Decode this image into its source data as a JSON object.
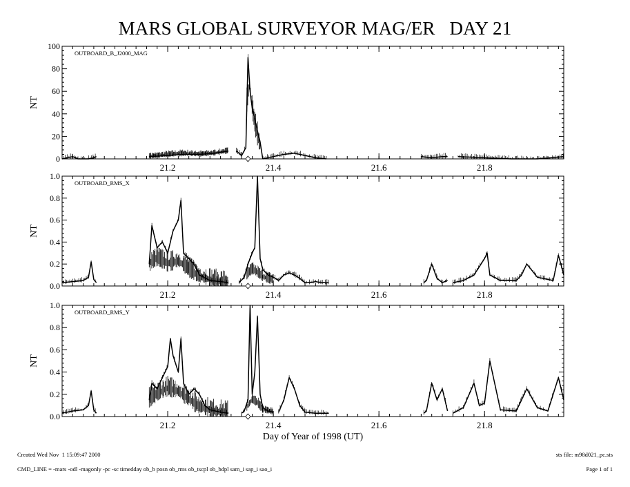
{
  "title": "MARS GLOBAL SURVEYOR MAG/ER   DAY 21",
  "footer": {
    "created": "Created Wed Nov  1 15:09:47 2000",
    "sts_file": "sts file: m98d021_pc.sts",
    "cmd_line": "CMD_LINE = -mars -odl -magonly -pc -sc timedday ob_b posn ob_rms ob_tscpl ob_bdpl sam_i sap_i sao_i",
    "page": "Page 1 of 1"
  },
  "chart_data": [
    {
      "type": "line",
      "label": "OUTBOARD_B_J2000_MAG",
      "ylabel": "NT",
      "xlim": [
        21.0,
        21.95
      ],
      "ylim": [
        0,
        100
      ],
      "yticks": [
        0,
        20,
        40,
        60,
        80,
        100
      ],
      "ytick_labels": [
        "0",
        "20",
        "40",
        "60",
        "80",
        "100"
      ],
      "xticks": [
        21.2,
        21.4,
        21.6,
        21.8
      ],
      "xtick_labels": [
        "21.2",
        "21.4",
        "21.6",
        "21.8"
      ],
      "marker_x": 21.352,
      "segments": [
        {
          "x": [
            21.0,
            21.01,
            21.02,
            21.03,
            21.04,
            21.05,
            21.06,
            21.065
          ],
          "y": [
            0,
            1,
            2,
            0,
            -1,
            0,
            1,
            2
          ]
        },
        {
          "x": [
            21.165,
            21.2,
            21.23,
            21.26,
            21.29,
            21.315
          ],
          "y": [
            2,
            3,
            4,
            4,
            5,
            7
          ]
        },
        {
          "x": [
            21.33,
            21.34,
            21.348,
            21.352,
            21.356,
            21.36,
            21.365,
            21.37,
            21.375,
            21.38
          ],
          "y": [
            7,
            3,
            10,
            90,
            60,
            45,
            35,
            25,
            15,
            0
          ]
        },
        {
          "x": [
            21.38,
            21.4,
            21.42,
            21.44,
            21.46,
            21.48,
            21.5
          ],
          "y": [
            0,
            2,
            4,
            5,
            3,
            1,
            0
          ]
        },
        {
          "x": [
            21.68,
            21.7,
            21.72,
            21.73
          ],
          "y": [
            2,
            1,
            2,
            2
          ]
        },
        {
          "x": [
            21.75,
            21.8,
            21.85,
            21.9,
            21.95
          ],
          "y": [
            2,
            1,
            0,
            -1,
            2
          ]
        }
      ],
      "envelopes": [
        {
          "x": [
            21.165,
            21.2,
            21.23,
            21.26,
            21.29,
            21.315
          ],
          "y": [
            2,
            4,
            5,
            4,
            5,
            7
          ],
          "amplitude": 3
        },
        {
          "x": [
            21.35,
            21.355,
            21.36,
            21.365,
            21.37,
            21.375
          ],
          "y": [
            50,
            65,
            45,
            30,
            20,
            10
          ],
          "amplitude": 12
        }
      ]
    },
    {
      "type": "line",
      "label": "OUTBOARD_RMS_X",
      "ylabel": "NT",
      "xlim": [
        21.0,
        21.95
      ],
      "ylim": [
        0,
        1.0
      ],
      "yticks": [
        0.0,
        0.2,
        0.4,
        0.6,
        0.8,
        1.0
      ],
      "ytick_labels": [
        "0.0",
        "0.2",
        "0.4",
        "0.6",
        "0.8",
        "1.0"
      ],
      "xticks": [
        21.2,
        21.4,
        21.6,
        21.8
      ],
      "xtick_labels": [
        "21.2",
        "21.4",
        "21.6",
        "21.8"
      ],
      "marker_x": 21.352,
      "segments": [
        {
          "x": [
            21.0,
            21.02,
            21.04,
            21.05,
            21.055,
            21.06,
            21.065
          ],
          "y": [
            0.03,
            0.04,
            0.05,
            0.08,
            0.22,
            0.06,
            0.03
          ]
        },
        {
          "x": [
            21.165,
            21.17,
            21.18,
            21.19,
            21.2,
            21.21,
            21.22,
            21.225,
            21.23,
            21.24,
            21.25,
            21.26,
            21.28,
            21.3,
            21.315
          ],
          "y": [
            0.2,
            0.55,
            0.35,
            0.4,
            0.3,
            0.5,
            0.6,
            0.78,
            0.3,
            0.25,
            0.2,
            0.1,
            0.05,
            0.04,
            0.03
          ]
        },
        {
          "x": [
            21.335,
            21.345,
            21.352,
            21.356,
            21.36,
            21.365,
            21.37,
            21.375,
            21.38,
            21.39,
            21.4,
            21.41
          ],
          "y": [
            0.03,
            0.08,
            0.2,
            0.25,
            0.3,
            0.35,
            1.0,
            0.25,
            0.15,
            0.1,
            0.08,
            0.05
          ]
        },
        {
          "x": [
            21.41,
            21.42,
            21.43,
            21.44,
            21.45,
            21.46,
            21.47,
            21.48,
            21.49,
            21.505
          ],
          "y": [
            0.05,
            0.1,
            0.12,
            0.1,
            0.07,
            0.03,
            0.03,
            0.04,
            0.03,
            0.03
          ]
        },
        {
          "x": [
            21.685,
            21.69,
            21.7,
            21.71,
            21.72,
            21.73
          ],
          "y": [
            0.03,
            0.05,
            0.2,
            0.07,
            0.03,
            0.05
          ]
        },
        {
          "x": [
            21.74,
            21.76,
            21.78,
            21.8,
            21.805,
            21.81,
            21.83,
            21.86,
            21.87,
            21.88,
            21.9,
            21.93,
            21.94,
            21.95
          ],
          "y": [
            0.03,
            0.05,
            0.1,
            0.25,
            0.3,
            0.1,
            0.05,
            0.05,
            0.1,
            0.2,
            0.08,
            0.05,
            0.28,
            0.1
          ]
        }
      ],
      "envelopes": [
        {
          "x": [
            21.165,
            21.18,
            21.2,
            21.22,
            21.24,
            21.26,
            21.29,
            21.315
          ],
          "y": [
            0.2,
            0.25,
            0.2,
            0.22,
            0.15,
            0.08,
            0.04,
            0.03
          ],
          "amplitude": 0.1
        },
        {
          "x": [
            21.35,
            21.36,
            21.37,
            21.38,
            21.4
          ],
          "y": [
            0.1,
            0.15,
            0.12,
            0.08,
            0.05
          ],
          "amplitude": 0.06
        }
      ]
    },
    {
      "type": "line",
      "label": "OUTBOARD_RMS_Y",
      "ylabel": "NT",
      "xlabel": "Day of Year of 1998 (UT)",
      "xlim": [
        21.0,
        21.95
      ],
      "ylim": [
        0,
        1.0
      ],
      "yticks": [
        0.0,
        0.2,
        0.4,
        0.6,
        0.8,
        1.0
      ],
      "ytick_labels": [
        "0.0",
        "0.2",
        "0.4",
        "0.6",
        "0.8",
        "1.0"
      ],
      "xticks": [
        21.2,
        21.4,
        21.6,
        21.8
      ],
      "xtick_labels": [
        "21.2",
        "21.4",
        "21.6",
        "21.8"
      ],
      "marker_x": 21.352,
      "segments": [
        {
          "x": [
            21.0,
            21.02,
            21.04,
            21.05,
            21.055,
            21.06,
            21.065
          ],
          "y": [
            0.03,
            0.05,
            0.06,
            0.1,
            0.23,
            0.06,
            0.03
          ]
        },
        {
          "x": [
            21.165,
            21.17,
            21.18,
            21.19,
            21.2,
            21.205,
            21.21,
            21.22,
            21.225,
            21.23,
            21.24,
            21.25,
            21.26,
            21.27,
            21.28,
            21.3,
            21.315
          ],
          "y": [
            0.15,
            0.3,
            0.25,
            0.35,
            0.45,
            0.7,
            0.55,
            0.4,
            0.7,
            0.3,
            0.2,
            0.25,
            0.2,
            0.1,
            0.06,
            0.04,
            0.03
          ]
        },
        {
          "x": [
            21.34,
            21.345,
            21.352,
            21.356,
            21.36,
            21.365,
            21.37,
            21.375,
            21.38,
            21.39,
            21.4
          ],
          "y": [
            0.03,
            0.05,
            0.15,
            1.0,
            0.2,
            0.4,
            0.9,
            0.2,
            0.08,
            0.05,
            0.04
          ]
        },
        {
          "x": [
            21.41,
            21.42,
            21.43,
            21.44,
            21.45,
            21.46,
            21.48,
            21.505
          ],
          "y": [
            0.04,
            0.15,
            0.35,
            0.25,
            0.1,
            0.04,
            0.03,
            0.03
          ]
        },
        {
          "x": [
            21.685,
            21.69,
            21.7,
            21.71,
            21.72,
            21.73
          ],
          "y": [
            0.03,
            0.05,
            0.3,
            0.15,
            0.25,
            0.05
          ]
        },
        {
          "x": [
            21.74,
            21.76,
            21.78,
            21.79,
            21.8,
            21.81,
            21.83,
            21.86,
            21.87,
            21.88,
            21.9,
            21.92,
            21.94,
            21.95
          ],
          "y": [
            0.03,
            0.08,
            0.3,
            0.1,
            0.12,
            0.5,
            0.06,
            0.05,
            0.15,
            0.25,
            0.08,
            0.05,
            0.35,
            0.15
          ]
        }
      ],
      "envelopes": [
        {
          "x": [
            21.165,
            21.18,
            21.2,
            21.22,
            21.24,
            21.26,
            21.29,
            21.315
          ],
          "y": [
            0.15,
            0.2,
            0.25,
            0.22,
            0.15,
            0.08,
            0.04,
            0.03
          ],
          "amplitude": 0.1
        },
        {
          "x": [
            21.35,
            21.36,
            21.37,
            21.38,
            21.4
          ],
          "y": [
            0.08,
            0.15,
            0.12,
            0.06,
            0.04
          ],
          "amplitude": 0.05
        }
      ]
    }
  ]
}
